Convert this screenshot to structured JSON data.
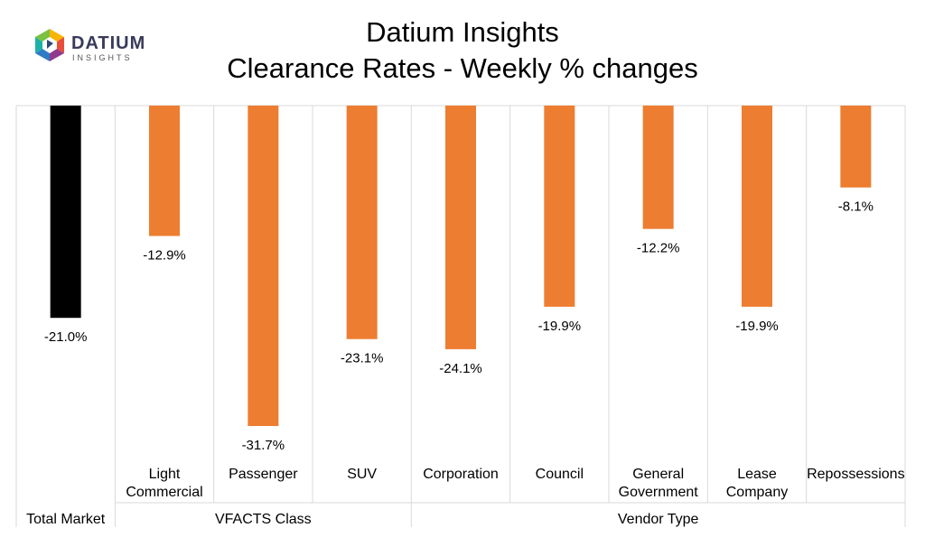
{
  "logo": {
    "wordmark": "DATIUM",
    "tagline": "INSIGHTS"
  },
  "chart_data": {
    "type": "bar",
    "title": "Datium Insights",
    "subtitle": "Clearance Rates - Weekly % changes",
    "categories": [
      "Total Market",
      "Light Commercial",
      "Passenger",
      "SUV",
      "Corporation",
      "Council",
      "General Government",
      "Lease Company",
      "Repossessions"
    ],
    "category_lines": [
      [],
      [
        "Light",
        "Commercial"
      ],
      [
        "Passenger"
      ],
      [
        "SUV"
      ],
      [
        "Corporation"
      ],
      [
        "Council"
      ],
      [
        "General",
        "Government"
      ],
      [
        "Lease",
        "Company"
      ],
      [
        "Repossessions"
      ]
    ],
    "groups": [
      {
        "label": "Total Market",
        "span": 1
      },
      {
        "label": "VFACTS Class",
        "span": 3
      },
      {
        "label": "Vendor Type",
        "span": 5
      }
    ],
    "values": [
      -21.0,
      -12.9,
      -31.7,
      -23.1,
      -24.1,
      -19.9,
      -12.2,
      -19.9,
      -8.1
    ],
    "value_labels": [
      "-21.0%",
      "-12.9%",
      "-31.7%",
      "-23.1%",
      "-24.1%",
      "-19.9%",
      "-12.2%",
      "-19.9%",
      "-8.1%"
    ],
    "ylim": [
      -35,
      0
    ],
    "xlabel": "",
    "ylabel": "",
    "colors": {
      "highlight": "#000000",
      "bars": "#ED7D31",
      "grid": "#D9D9D9"
    }
  }
}
